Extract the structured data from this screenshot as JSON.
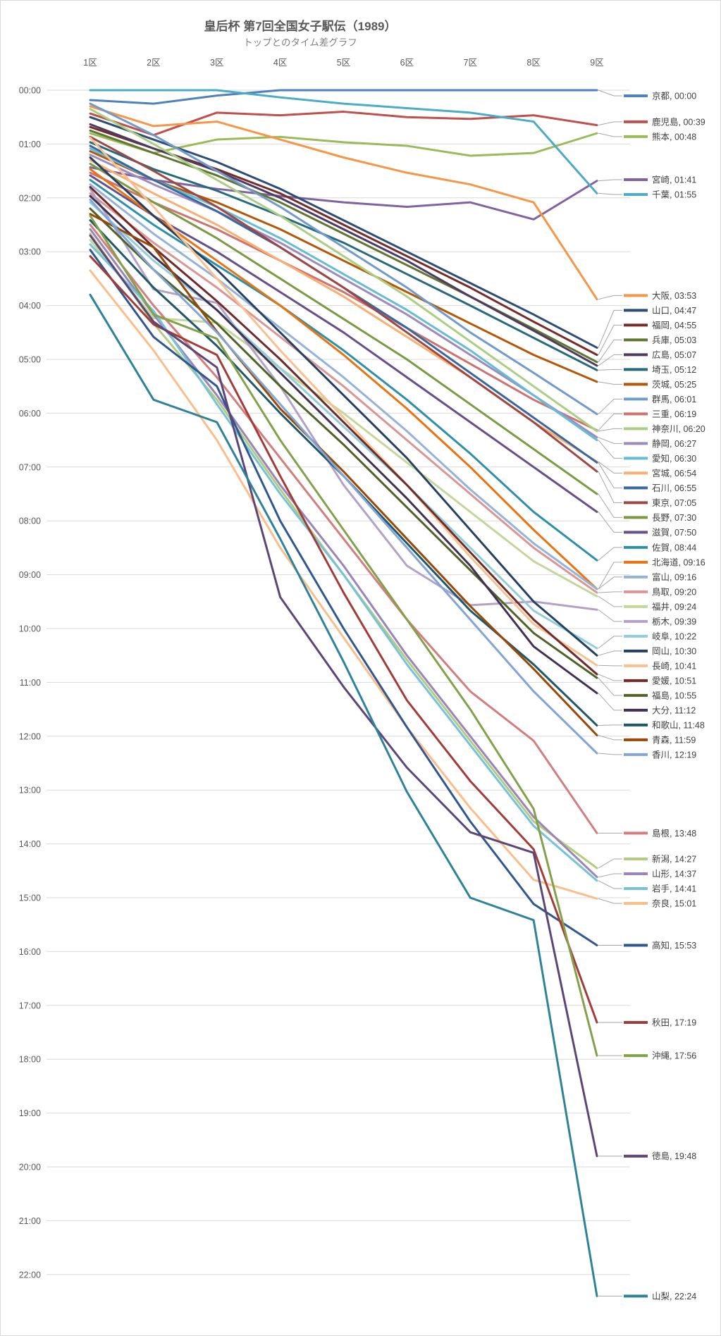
{
  "chart_data": {
    "type": "line",
    "title": "皇后杯 第7回全国女子駅伝（1989）",
    "subtitle": "トップとのタイム差グラフ",
    "x_categories": [
      "1区",
      "2区",
      "3区",
      "4区",
      "5区",
      "6区",
      "7区",
      "8区",
      "9区"
    ],
    "y_axis": {
      "unit": "mm:ss behind leader (larger = further behind)",
      "ticks": [
        "00:00",
        "01:00",
        "02:00",
        "03:00",
        "04:00",
        "05:00",
        "06:00",
        "07:00",
        "08:00",
        "09:00",
        "10:00",
        "11:00",
        "12:00",
        "13:00",
        "14:00",
        "15:00",
        "16:00",
        "17:00",
        "18:00",
        "19:00",
        "20:00",
        "21:00",
        "22:00"
      ],
      "min_seconds": 0,
      "max_seconds": 1320
    },
    "grid": true,
    "legend_position": "right",
    "series": [
      {
        "name": "京都",
        "final": "00:00",
        "color": "#4F81BD",
        "values_sec": [
          11,
          15,
          6,
          0,
          0,
          0,
          0,
          0,
          0
        ]
      },
      {
        "name": "鹿児島",
        "final": "00:39",
        "color": "#C0504D",
        "values_sec": [
          26,
          50,
          25,
          28,
          24,
          30,
          32,
          28,
          39
        ]
      },
      {
        "name": "熊本",
        "final": "00:48",
        "color": "#9BBB59",
        "values_sec": [
          48,
          70,
          55,
          52,
          58,
          62,
          73,
          70,
          48
        ]
      },
      {
        "name": "宮崎",
        "final": "01:41",
        "color": "#8064A2",
        "values_sec": [
          86,
          100,
          110,
          118,
          125,
          130,
          125,
          144,
          101
        ]
      },
      {
        "name": "千葉",
        "final": "01:55",
        "color": "#4BACC6",
        "values_sec": [
          0,
          0,
          0,
          8,
          15,
          20,
          25,
          35,
          115
        ]
      },
      {
        "name": "大阪",
        "final": "03:53",
        "color": "#F79646",
        "values_sec": [
          18,
          40,
          35,
          55,
          75,
          92,
          105,
          125,
          233
        ]
      },
      {
        "name": "山口",
        "final": "04:47",
        "color": "#2C4D75",
        "values_sec": [
          30,
          55,
          80,
          110,
          145,
          180,
          215,
          250,
          287
        ]
      },
      {
        "name": "福岡",
        "final": "04:55",
        "color": "#772C2A",
        "values_sec": [
          41,
          65,
          88,
          115,
          150,
          185,
          220,
          258,
          295
        ]
      },
      {
        "name": "兵庫",
        "final": "05:03",
        "color": "#5F7530",
        "values_sec": [
          45,
          70,
          95,
          125,
          160,
          195,
          230,
          266,
          303
        ]
      },
      {
        "name": "広島",
        "final": "05:07",
        "color": "#4D3B62",
        "values_sec": [
          38,
          65,
          90,
          120,
          155,
          190,
          230,
          268,
          307
        ]
      },
      {
        "name": "埼玉",
        "final": "05:12",
        "color": "#276A7C",
        "values_sec": [
          58,
          88,
          112,
          140,
          170,
          205,
          240,
          276,
          312
        ]
      },
      {
        "name": "茨城",
        "final": "05:25",
        "color": "#B65708",
        "values_sec": [
          68,
          100,
          125,
          155,
          190,
          225,
          260,
          295,
          325
        ]
      },
      {
        "name": "群馬",
        "final": "06:01",
        "color": "#729ACA",
        "values_sec": [
          15,
          50,
          90,
          130,
          175,
          220,
          270,
          315,
          361
        ]
      },
      {
        "name": "三重",
        "final": "06:19",
        "color": "#CD7371",
        "values_sec": [
          92,
          125,
          155,
          190,
          225,
          265,
          305,
          345,
          379
        ]
      },
      {
        "name": "神奈川",
        "final": "06:20",
        "color": "#AECD84",
        "values_sec": [
          21,
          60,
          100,
          140,
          185,
          230,
          280,
          330,
          380
        ]
      },
      {
        "name": "静岡",
        "final": "06:27",
        "color": "#9D8BBF",
        "values_sec": [
          72,
          105,
          135,
          170,
          210,
          250,
          295,
          340,
          387
        ]
      },
      {
        "name": "愛知",
        "final": "06:30",
        "color": "#66BCD3",
        "values_sec": [
          65,
          100,
          130,
          165,
          205,
          245,
          290,
          340,
          390
        ]
      },
      {
        "name": "宮城",
        "final": "06:54",
        "color": "#F9AE73",
        "values_sec": [
          78,
          115,
          150,
          190,
          230,
          275,
          320,
          370,
          414
        ]
      },
      {
        "name": "石川",
        "final": "06:55",
        "color": "#3A679D",
        "values_sec": [
          62,
          100,
          135,
          175,
          220,
          265,
          315,
          365,
          415
        ]
      },
      {
        "name": "東京",
        "final": "07:05",
        "color": "#9E4845",
        "values_sec": [
          52,
          90,
          130,
          175,
          220,
          270,
          320,
          370,
          425
        ]
      },
      {
        "name": "長野",
        "final": "07:30",
        "color": "#7C9A44",
        "values_sec": [
          82,
          125,
          165,
          210,
          255,
          300,
          350,
          400,
          450
        ]
      },
      {
        "name": "滋賀",
        "final": "07:50",
        "color": "#66508A",
        "values_sec": [
          95,
          140,
          180,
          225,
          270,
          320,
          370,
          420,
          470
        ]
      },
      {
        "name": "佐賀",
        "final": "08:44",
        "color": "#2E8FA9",
        "values_sec": [
          100,
          150,
          195,
          240,
          290,
          345,
          405,
          470,
          524
        ]
      },
      {
        "name": "北海道",
        "final": "09:16",
        "color": "#E97310",
        "values_sec": [
          88,
          140,
          190,
          240,
          295,
          355,
          420,
          490,
          556
        ]
      },
      {
        "name": "富山",
        "final": "09:16",
        "color": "#95B3D7",
        "values_sec": [
          105,
          160,
          210,
          265,
          320,
          380,
          445,
          505,
          556
        ]
      },
      {
        "name": "鳥取",
        "final": "09:20",
        "color": "#D99694",
        "values_sec": [
          115,
          170,
          220,
          275,
          330,
          390,
          450,
          510,
          560
        ]
      },
      {
        "name": "福井",
        "final": "09:24",
        "color": "#C3D69B",
        "values_sec": [
          167,
          254,
          259,
          310,
          360,
          415,
          470,
          525,
          564
        ]
      },
      {
        "name": "栃木",
        "final": "09:39",
        "color": "#B2A2C7",
        "values_sec": [
          110,
          222,
          237,
          330,
          440,
          530,
          574,
          570,
          579
        ]
      },
      {
        "name": "岐阜",
        "final": "10:22",
        "color": "#92CDDC",
        "values_sec": [
          125,
          190,
          245,
          310,
          375,
          440,
          510,
          580,
          622
        ]
      },
      {
        "name": "岡山",
        "final": "10:30",
        "color": "#254061",
        "values_sec": [
          75,
          140,
          200,
          270,
          340,
          410,
          490,
          570,
          630
        ]
      },
      {
        "name": "長崎",
        "final": "10:41",
        "color": "#FAC090",
        "values_sec": [
          53,
          130,
          210,
          290,
          365,
          440,
          520,
          595,
          641
        ]
      },
      {
        "name": "愛媛",
        "final": "10:51",
        "color": "#6F2B29",
        "values_sec": [
          108,
          175,
          235,
          300,
          370,
          440,
          515,
          590,
          651
        ]
      },
      {
        "name": "福島",
        "final": "10:55",
        "color": "#4F6228",
        "values_sec": [
          132,
          200,
          260,
          330,
          395,
          465,
          535,
          605,
          655
        ]
      },
      {
        "name": "大分",
        "final": "11:12",
        "color": "#403152",
        "values_sec": [
          118,
          185,
          245,
          315,
          385,
          455,
          530,
          620,
          672
        ]
      },
      {
        "name": "和歌山",
        "final": "11:48",
        "color": "#215868",
        "values_sec": [
          145,
          220,
          285,
          360,
          430,
          505,
          580,
          640,
          708
        ]
      },
      {
        "name": "青森",
        "final": "11:59",
        "color": "#984807",
        "values_sec": [
          138,
          175,
          269,
          355,
          425,
          500,
          575,
          645,
          719
        ]
      },
      {
        "name": "香川",
        "final": "12:19",
        "color": "#82A5D7",
        "values_sec": [
          122,
          200,
          270,
          350,
          430,
          510,
          590,
          670,
          739
        ]
      },
      {
        "name": "島根",
        "final": "13:48",
        "color": "#D37E7E",
        "values_sec": [
          150,
          240,
          320,
          410,
          500,
          590,
          670,
          725,
          828
        ]
      },
      {
        "name": "新潟",
        "final": "14:27",
        "color": "#B3CC82",
        "values_sec": [
          160,
          260,
          345,
          445,
          540,
          635,
          725,
          815,
          867
        ]
      },
      {
        "name": "山形",
        "final": "14:37",
        "color": "#9A84B8",
        "values_sec": [
          155,
          250,
          340,
          440,
          530,
          630,
          720,
          810,
          877
        ]
      },
      {
        "name": "岩手",
        "final": "14:41",
        "color": "#76C3D9",
        "values_sec": [
          172,
          246,
          350,
          450,
          540,
          640,
          730,
          820,
          881
        ]
      },
      {
        "name": "奈良",
        "final": "15:01",
        "color": "#FBBE8B",
        "values_sec": [
          201,
          290,
          390,
          510,
          610,
          710,
          800,
          880,
          901
        ]
      },
      {
        "name": "高知",
        "final": "15:53",
        "color": "#31578F",
        "values_sec": [
          178,
          275,
          330,
          480,
          600,
          710,
          815,
          907,
          953
        ]
      },
      {
        "name": "秋田",
        "final": "17:19",
        "color": "#A33C39",
        "values_sec": [
          185,
          261,
          295,
          430,
          560,
          680,
          770,
          846,
          1039
        ]
      },
      {
        "name": "沖縄",
        "final": "17:56",
        "color": "#85A04A",
        "values_sec": [
          140,
          250,
          277,
          390,
          490,
          590,
          690,
          801,
          1076
        ]
      },
      {
        "name": "徳島",
        "final": "19:48",
        "color": "#5C4677",
        "values_sec": [
          162,
          258,
          309,
          565,
          665,
          755,
          827,
          850,
          1188
        ]
      },
      {
        "name": "山梨",
        "final": "22:24",
        "color": "#2D8399",
        "values_sec": [
          228,
          345,
          370,
          500,
          637,
          782,
          900,
          925,
          1344
        ]
      }
    ]
  }
}
